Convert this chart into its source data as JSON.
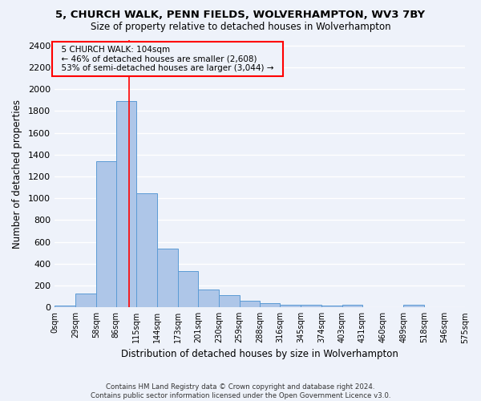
{
  "title_line1": "5, CHURCH WALK, PENN FIELDS, WOLVERHAMPTON, WV3 7BY",
  "title_line2": "Size of property relative to detached houses in Wolverhampton",
  "xlabel": "Distribution of detached houses by size in Wolverhampton",
  "ylabel": "Number of detached properties",
  "bar_values": [
    15,
    125,
    1340,
    1890,
    1045,
    540,
    335,
    165,
    110,
    60,
    35,
    25,
    20,
    15,
    20,
    0,
    0,
    20
  ],
  "bar_bins": [
    0,
    29,
    58,
    86,
    115,
    144,
    173,
    201,
    230,
    259,
    288,
    316,
    345,
    374,
    403,
    431,
    460,
    489,
    518
  ],
  "tick_labels": [
    "0sqm",
    "29sqm",
    "58sqm",
    "86sqm",
    "115sqm",
    "144sqm",
    "173sqm",
    "201sqm",
    "230sqm",
    "259sqm",
    "288sqm",
    "316sqm",
    "345sqm",
    "374sqm",
    "403sqm",
    "431sqm",
    "460sqm",
    "489sqm",
    "518sqm",
    "546sqm",
    "575sqm"
  ],
  "tick_positions": [
    0,
    29,
    58,
    86,
    115,
    144,
    173,
    201,
    230,
    259,
    288,
    316,
    345,
    374,
    403,
    431,
    460,
    489,
    518,
    546,
    575
  ],
  "bar_color": "#aec6e8",
  "bar_edge_color": "#5b9bd5",
  "property_line_x": 104,
  "property_line_color": "red",
  "ylim": [
    0,
    2450
  ],
  "yticks": [
    0,
    200,
    400,
    600,
    800,
    1000,
    1200,
    1400,
    1600,
    1800,
    2000,
    2200,
    2400
  ],
  "annotation_text_line1": "5 CHURCH WALK: 104sqm",
  "annotation_text_line2": "← 46% of detached houses are smaller (2,608)",
  "annotation_text_line3": "53% of semi-detached houses are larger (3,044) →",
  "footer_line1": "Contains HM Land Registry data © Crown copyright and database right 2024.",
  "footer_line2": "Contains public sector information licensed under the Open Government Licence v3.0.",
  "background_color": "#eef2fa",
  "grid_color": "#ffffff"
}
